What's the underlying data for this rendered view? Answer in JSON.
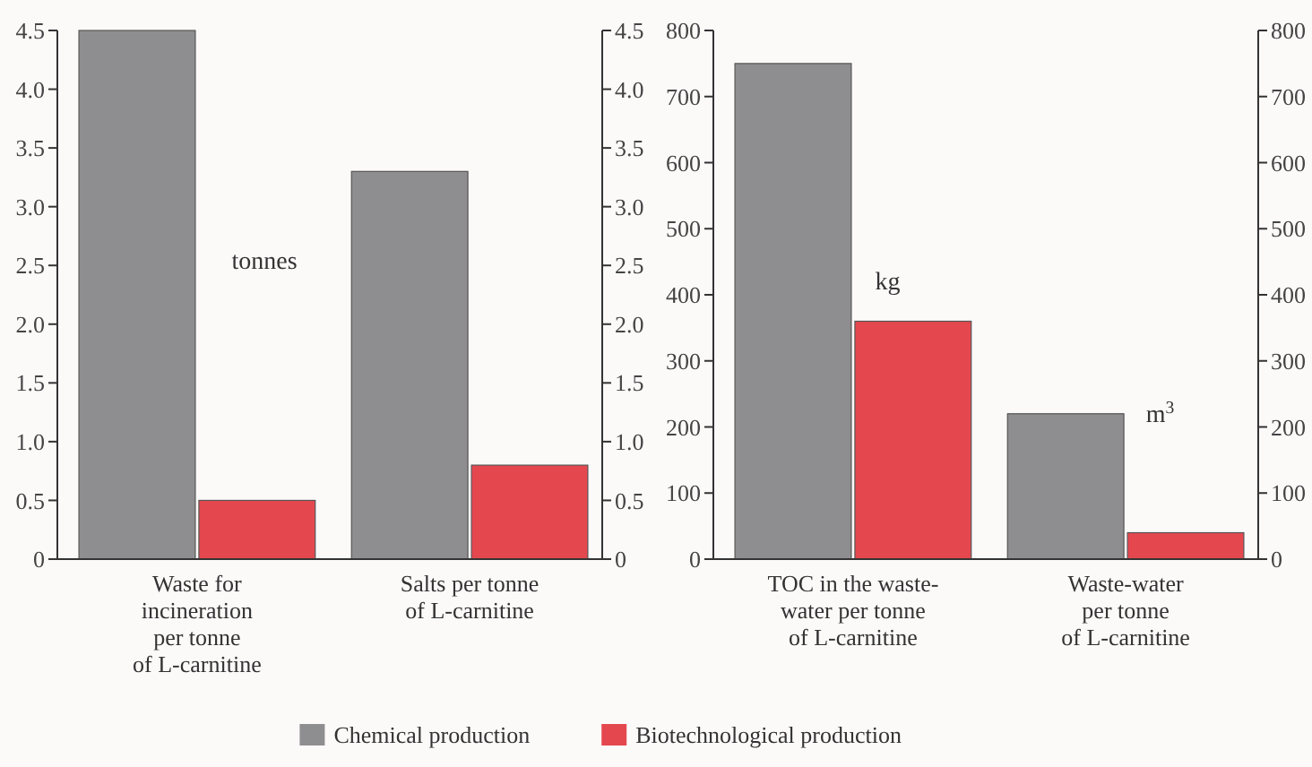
{
  "chart_data": [
    {
      "type": "bar",
      "categories": [
        "Waste for\nincineration\nper tonne\nof L-carnitine",
        "Salts per tonne\nof L-carnitine"
      ],
      "series": [
        {
          "name": "Chemical production",
          "color": "#8e8e90",
          "values": [
            4.5,
            3.3
          ]
        },
        {
          "name": "Biotechnological production",
          "color": "#e5474f",
          "values": [
            0.5,
            0.8
          ]
        }
      ],
      "ylim": [
        0,
        4.5
      ],
      "yticks": [
        0,
        {
          "value": 0.5,
          "label": "0.5"
        },
        {
          "value": 1,
          "label": "1.0"
        },
        {
          "value": 1.5,
          "label": "1.5"
        },
        {
          "value": 2,
          "label": "2.0"
        },
        {
          "value": 2.5,
          "label": "2.5"
        },
        {
          "value": 3,
          "label": "3.0"
        },
        {
          "value": 3.5,
          "label": "3.5"
        },
        {
          "value": 4,
          "label": "4.0"
        },
        {
          "value": 4.5,
          "label": "4.5"
        }
      ],
      "y2lim": [
        0,
        4.5
      ],
      "y2ticks": [
        0,
        {
          "value": 0.5,
          "label": "0.5"
        },
        {
          "value": 1,
          "label": "1.0"
        },
        {
          "value": 1.5,
          "label": "1.5"
        },
        {
          "value": 2,
          "label": "2.0"
        },
        {
          "value": 2.5,
          "label": "2.5"
        },
        {
          "value": 3,
          "label": "3.0"
        },
        {
          "value": 3.5,
          "label": "3.5"
        },
        {
          "value": 4,
          "label": "4.0"
        },
        {
          "value": 4.5,
          "label": "4.5"
        }
      ],
      "annotations": [
        "tonnes"
      ],
      "legend": "bottom",
      "grid": false
    },
    {
      "type": "bar",
      "categories": [
        "TOC in the waste-\nwater per tonne\nof L-carnitine",
        "Waste-water\nper tonne\nof L-carnitine"
      ],
      "series": [
        {
          "color": "#8e8e90",
          "values": [
            750,
            220
          ]
        },
        {
          "color": "#e5474f",
          "values": [
            360,
            40
          ]
        }
      ],
      "ylim": [
        0,
        800
      ],
      "yticks": [
        0,
        100,
        200,
        300,
        400,
        500,
        600,
        700,
        800
      ],
      "y2lim": [
        0,
        800
      ],
      "y2ticks": [
        0,
        100,
        200,
        300,
        400,
        500,
        600,
        700,
        800
      ],
      "annotations": [
        "kg",
        "m$^{3}$"
      ],
      "grid": false
    }
  ]
}
